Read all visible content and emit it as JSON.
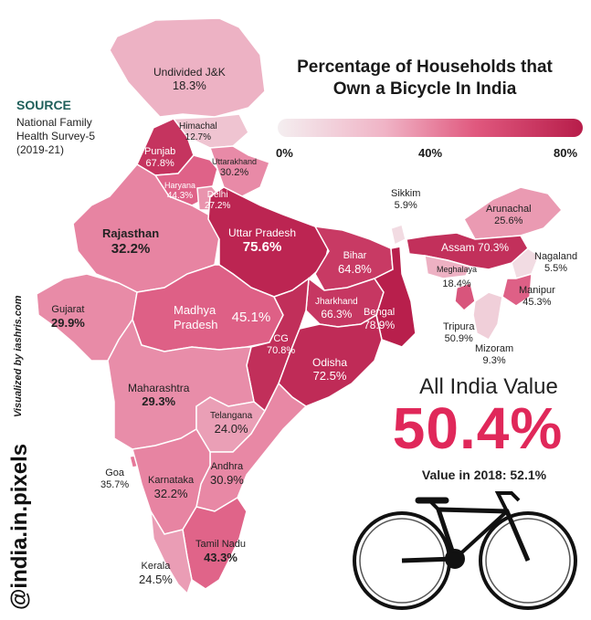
{
  "title": {
    "line1": "Percentage of Households that",
    "line2": "Own a Bicycle In India"
  },
  "legend": {
    "min": "0%",
    "mid": "40%",
    "max": "80%"
  },
  "source": {
    "heading": "SOURCE",
    "text": "National Family Health Survey-5 (2019-21)"
  },
  "credit": "Visualized by iashris.com",
  "brand": "@india.in.pixels",
  "summary": {
    "heading": "All India Value",
    "value": "50.4%",
    "sub": "Value in 2018: 52.1%"
  },
  "colors": {
    "low": "#f4eef0",
    "mid": "#e46a8f",
    "high": "#b71d4a",
    "accent": "#e0285a"
  },
  "states": [
    {
      "name": "Undivided J&K",
      "value": "18.3%",
      "pct": 18.3
    },
    {
      "name": "Himachal",
      "value": "12.7%",
      "pct": 12.7
    },
    {
      "name": "Punjab",
      "value": "67.8%",
      "pct": 67.8
    },
    {
      "name": "Uttarakhand",
      "value": "30.2%",
      "pct": 30.2
    },
    {
      "name": "Haryana",
      "value": "44.3%",
      "pct": 44.3
    },
    {
      "name": "Delhi",
      "value": "27.2%",
      "pct": 27.2
    },
    {
      "name": "Rajasthan",
      "value": "32.2%",
      "pct": 32.2
    },
    {
      "name": "Uttar Pradesh",
      "value": "75.6%",
      "pct": 75.6
    },
    {
      "name": "Bihar",
      "value": "64.8%",
      "pct": 64.8
    },
    {
      "name": "Gujarat",
      "value": "29.9%",
      "pct": 29.9
    },
    {
      "name": "Madhya Pradesh",
      "value": "45.1%",
      "pct": 45.1
    },
    {
      "name": "Jharkhand",
      "value": "66.3%",
      "pct": 66.3
    },
    {
      "name": "Bengal",
      "value": "78.9%",
      "pct": 78.9
    },
    {
      "name": "CG",
      "value": "70.8%",
      "pct": 70.8
    },
    {
      "name": "Odisha",
      "value": "72.5%",
      "pct": 72.5
    },
    {
      "name": "Maharashtra",
      "value": "29.3%",
      "pct": 29.3
    },
    {
      "name": "Telangana",
      "value": "24.0%",
      "pct": 24.0
    },
    {
      "name": "Goa",
      "value": "35.7%",
      "pct": 35.7
    },
    {
      "name": "Andhra",
      "value": "30.9%",
      "pct": 30.9
    },
    {
      "name": "Karnataka",
      "value": "32.2%",
      "pct": 32.2
    },
    {
      "name": "Tamil Nadu",
      "value": "43.3%",
      "pct": 43.3
    },
    {
      "name": "Kerala",
      "value": "24.5%",
      "pct": 24.5
    },
    {
      "name": "Sikkim",
      "value": "5.9%",
      "pct": 5.9
    },
    {
      "name": "Arunachal",
      "value": "25.6%",
      "pct": 25.6
    },
    {
      "name": "Assam",
      "value": "70.3%",
      "pct": 70.3
    },
    {
      "name": "Meghalaya",
      "value": "18.4%",
      "pct": 18.4
    },
    {
      "name": "Nagaland",
      "value": "5.5%",
      "pct": 5.5
    },
    {
      "name": "Manipur",
      "value": "45.3%",
      "pct": 45.3
    },
    {
      "name": "Tripura",
      "value": "50.9%",
      "pct": 50.9
    },
    {
      "name": "Mizoram",
      "value": "9.3%",
      "pct": 9.3
    }
  ]
}
